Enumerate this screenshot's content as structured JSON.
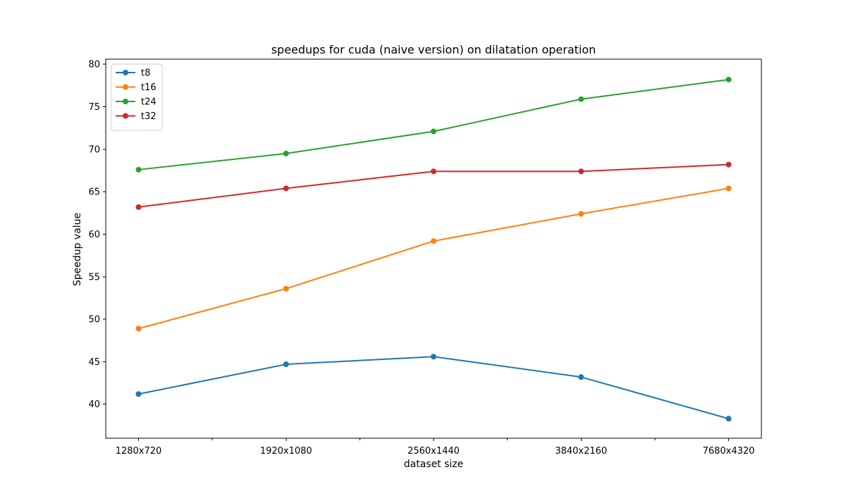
{
  "chart_data": {
    "type": "line",
    "title": "speedups for cuda (naive version) on dilatation operation",
    "xlabel": "dataset size",
    "ylabel": "Speedup value",
    "categories": [
      "1280x720",
      "1920x1080",
      "2560x1440",
      "3840x2160",
      "7680x4320"
    ],
    "ylim": [
      36.0,
      80.6
    ],
    "yticks": [
      40,
      45,
      50,
      55,
      60,
      65,
      70,
      75,
      80
    ],
    "grid": false,
    "legend_position": "upper-left",
    "series": [
      {
        "name": "t8",
        "color": "#1f77b4",
        "values": [
          41.2,
          44.7,
          45.6,
          43.2,
          38.3
        ]
      },
      {
        "name": "t16",
        "color": "#ff7f0e",
        "values": [
          48.9,
          53.6,
          59.2,
          62.4,
          65.4
        ]
      },
      {
        "name": "t24",
        "color": "#2ca02c",
        "values": [
          67.6,
          69.5,
          72.1,
          75.9,
          78.2
        ]
      },
      {
        "name": "t32",
        "color": "#d62728",
        "values": [
          63.2,
          65.4,
          67.4,
          67.4,
          68.2
        ]
      }
    ]
  }
}
